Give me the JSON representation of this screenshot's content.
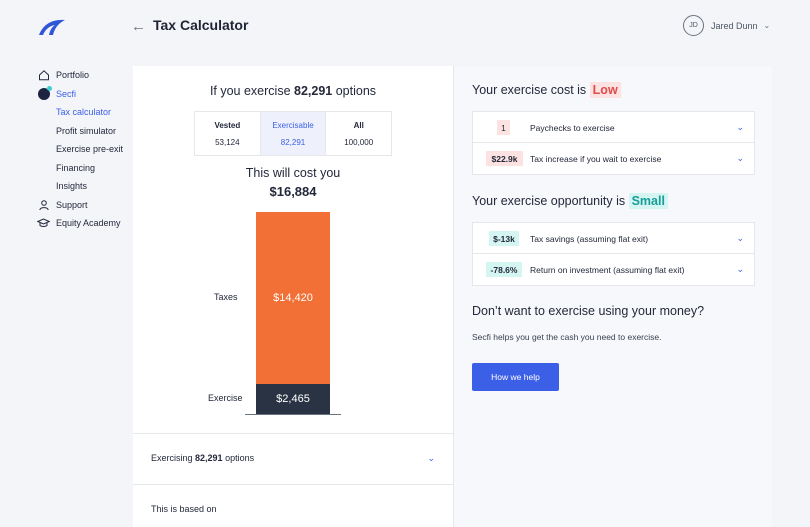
{
  "header": {
    "title": "Tax Calculator",
    "user": {
      "initials": "JD",
      "name": "Jared Dunn"
    }
  },
  "sidebar": {
    "items": [
      {
        "label": "Portfolio",
        "icon": "home-icon"
      },
      {
        "label": "Secfi",
        "icon": "secfi-icon",
        "active": true
      },
      {
        "label": "Tax calculator",
        "sub": true,
        "active": true
      },
      {
        "label": "Profit simulator",
        "sub": true
      },
      {
        "label": "Exercise pre-exit",
        "sub": true
      },
      {
        "label": "Financing",
        "sub": true
      },
      {
        "label": "Insights",
        "sub": true
      },
      {
        "label": "Support",
        "icon": "person-icon"
      },
      {
        "label": "Equity Academy",
        "icon": "graduation-cap-icon"
      }
    ]
  },
  "calculator": {
    "heading_prefix": "If you exercise",
    "heading_count": "82,291",
    "heading_suffix": "options",
    "tabs": [
      {
        "label": "Vested",
        "count": "53,124"
      },
      {
        "label": "Exercisable",
        "count": "82,291",
        "selected": true
      },
      {
        "label": "All",
        "count": "100,000"
      }
    ],
    "cost_label": "This will cost you",
    "cost_value": "$16,884",
    "bars": {
      "taxes": {
        "label": "Taxes",
        "value": "$14,420"
      },
      "exercise": {
        "label": "Exercise",
        "value": "$2,465"
      }
    },
    "accordion": {
      "prefix": "Exercising",
      "count": "82,291",
      "suffix": "options"
    },
    "based_on": "This is based on"
  },
  "summary": {
    "cost_title_prefix": "Your exercise cost is",
    "cost_level": "Low",
    "cost_rows": [
      {
        "value": "1",
        "text": "Paychecks to exercise"
      },
      {
        "value": "$22.9k",
        "text": "Tax increase if you wait to exercise"
      }
    ],
    "opportunity_title_prefix": "Your exercise opportunity is",
    "opportunity_level": "Small",
    "opportunity_rows": [
      {
        "value": "$-13k",
        "text": "Tax savings (assuming flat exit)"
      },
      {
        "value": "-78.6%",
        "text": "Return on investment (assuming flat exit)"
      }
    ],
    "cta": {
      "heading": "Don’t want to exercise using your money?",
      "text": "Secfi helps you get the cash you need to exercise.",
      "button": "How we help"
    }
  },
  "colors": {
    "accent": "#3b5fe6",
    "taxes_bar": "#f26f35",
    "exercise_bar": "#2a3344",
    "low_highlight": "#fde2e2",
    "small_highlight": "#d5f5f3"
  }
}
